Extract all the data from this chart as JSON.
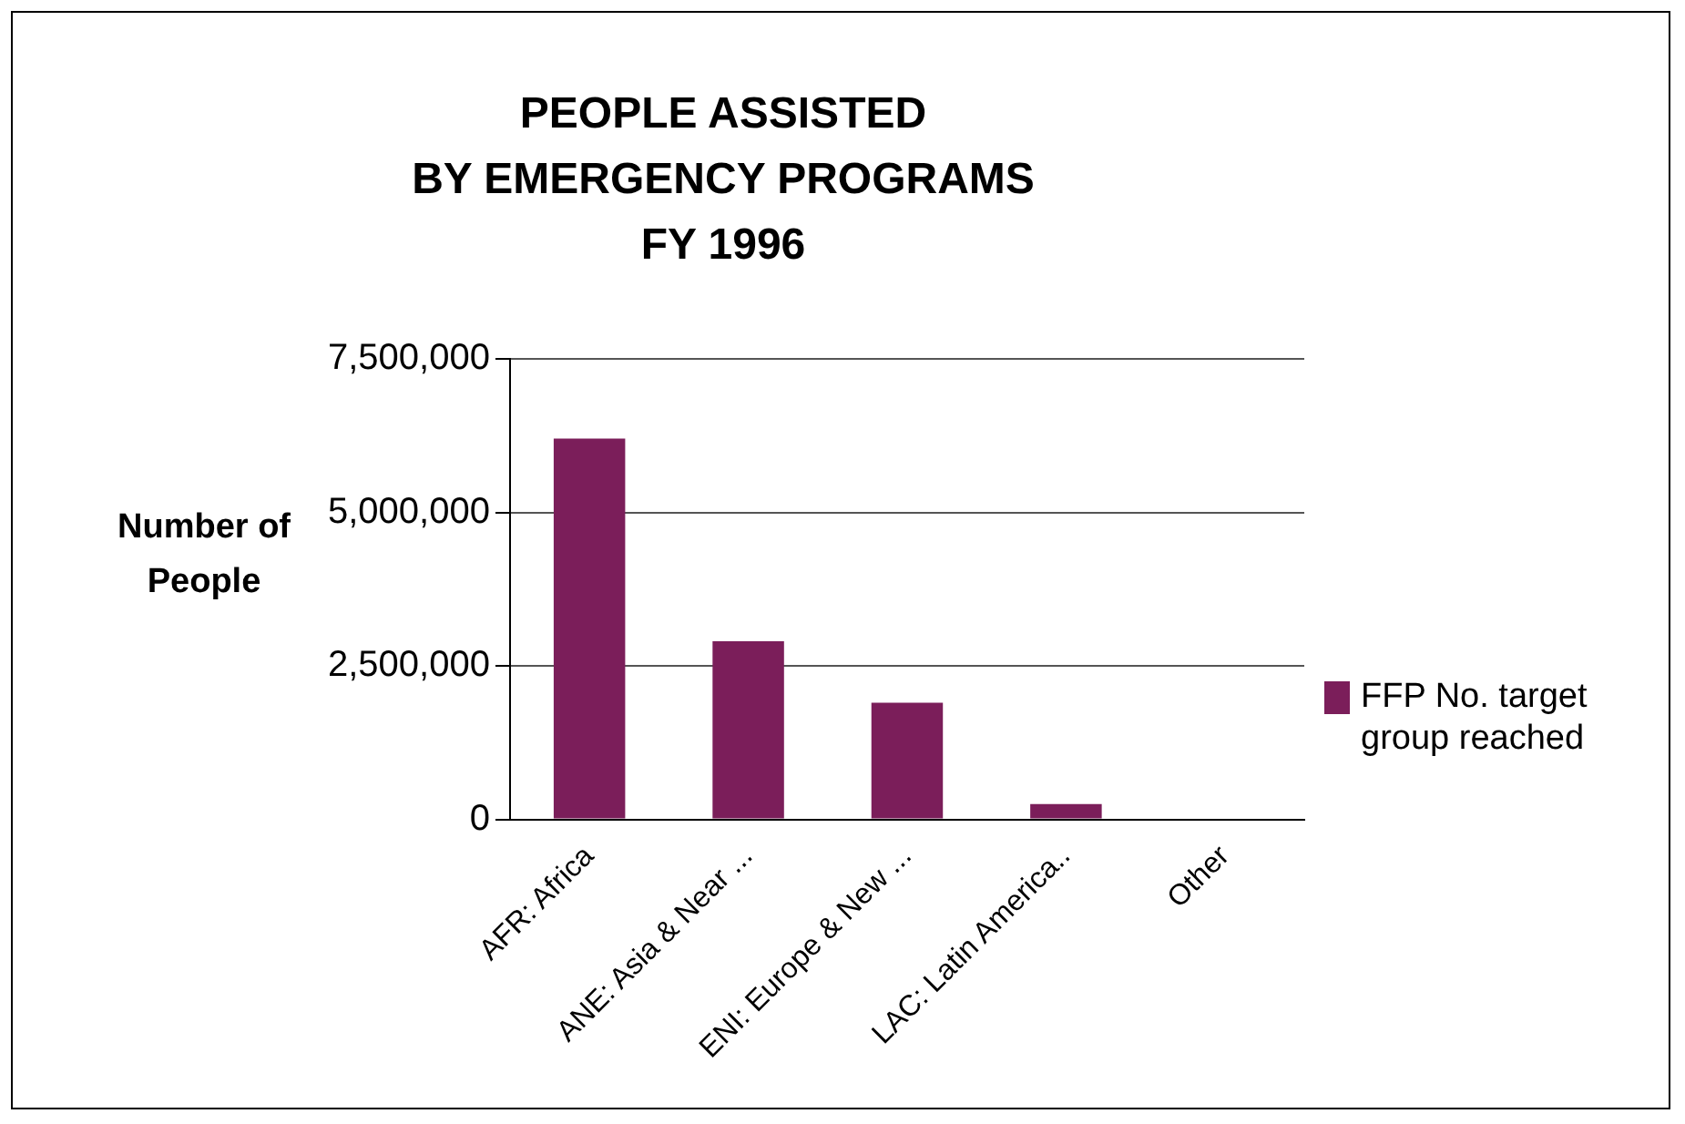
{
  "chart_data": {
    "type": "bar",
    "title": "PEOPLE ASSISTED\nBY EMERGENCY PROGRAMS\nFY 1996",
    "ylabel": "Number of People",
    "categories": [
      "AFR: Africa",
      "ANE: Asia & Near ...",
      "ENI: Europe & New ...",
      "LAC: Latin America..",
      "Other"
    ],
    "series": [
      {
        "name": "FFP No. target group reached",
        "color": "#7b1e5a",
        "values": [
          6200000,
          2900000,
          1900000,
          250000,
          null
        ]
      }
    ],
    "ylim": [
      0,
      7500000
    ],
    "yticks": [
      0,
      {
        "value": 2500000,
        "label": "2,500,000"
      },
      {
        "value": 5000000,
        "label": "5,000,000"
      },
      {
        "value": 7500000,
        "label": "7,500,000"
      }
    ],
    "grid": "y",
    "legend": "right"
  }
}
